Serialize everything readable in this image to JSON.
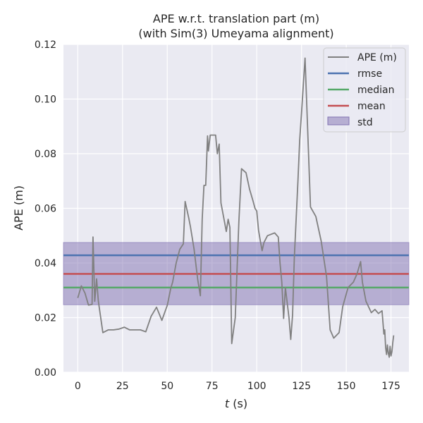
{
  "chart_data": {
    "type": "line",
    "title_line1": "APE w.r.t. translation part (m)",
    "title_line2": "(with Sim(3) Umeyama alignment)",
    "xlabel_var": "t",
    "xlabel_unit": " (s)",
    "ylabel": "APE (m)",
    "xlim": [
      -8,
      185
    ],
    "ylim": [
      0,
      0.12
    ],
    "xticks": [
      0,
      25,
      50,
      75,
      100,
      125,
      150,
      175
    ],
    "yticks": [
      0.0,
      0.02,
      0.04,
      0.06,
      0.08,
      0.1,
      0.12
    ],
    "ytick_labels": [
      "0.00",
      "0.02",
      "0.04",
      "0.06",
      "0.08",
      "0.10",
      "0.12"
    ],
    "grid": true,
    "legend_position": "top-right",
    "colors": {
      "background": "#eaeaf2",
      "grid": "#ffffff",
      "ape": "#808080",
      "rmse": "#4c72b0",
      "median": "#55a868",
      "mean": "#c44e52",
      "std": "#8172b2"
    },
    "stats": {
      "rmse": 0.0428,
      "median": 0.031,
      "mean": 0.036,
      "std_band": [
        0.0247,
        0.0475
      ]
    },
    "legend": [
      "APE (m)",
      "rmse",
      "median",
      "mean",
      "std"
    ],
    "series": [
      {
        "name": "APE (m)",
        "x": [
          0,
          2,
          4,
          6,
          8,
          8.5,
          9.5,
          10.5,
          11.5,
          14,
          17,
          20,
          23,
          26,
          29,
          32,
          35,
          38,
          41,
          44,
          47,
          50,
          52,
          53,
          55,
          57,
          59,
          60,
          62,
          63,
          65,
          67,
          68.5,
          69.5,
          70.5,
          71.5,
          72.5,
          73,
          74,
          75.5,
          77,
          78,
          79,
          80,
          82,
          83,
          84,
          85,
          86,
          88,
          90,
          91.5,
          94,
          96,
          98,
          99,
          100,
          101,
          102,
          103,
          104,
          106,
          108,
          110,
          112,
          113,
          114,
          115,
          116,
          118,
          119,
          120,
          121,
          123,
          124,
          125,
          126,
          127,
          130,
          133,
          136,
          139,
          141,
          143,
          146,
          148,
          151,
          154,
          156,
          158,
          159,
          161,
          164,
          166,
          168,
          170,
          171,
          171.5,
          172,
          172.5,
          173,
          173.5,
          174,
          174.5,
          175,
          175.5,
          176,
          176.5
        ],
        "y": [
          0.0272,
          0.0316,
          0.029,
          0.0246,
          0.0248,
          0.0495,
          0.026,
          0.0342,
          0.026,
          0.0145,
          0.0155,
          0.0155,
          0.0158,
          0.0165,
          0.0155,
          0.0155,
          0.0155,
          0.0148,
          0.0205,
          0.0238,
          0.019,
          0.0245,
          0.0308,
          0.033,
          0.04,
          0.045,
          0.047,
          0.0625,
          0.0565,
          0.053,
          0.045,
          0.034,
          0.028,
          0.056,
          0.0684,
          0.0684,
          0.0865,
          0.081,
          0.0868,
          0.0868,
          0.0868,
          0.08,
          0.0835,
          0.062,
          0.055,
          0.0515,
          0.056,
          0.053,
          0.0105,
          0.02,
          0.055,
          0.0745,
          0.073,
          0.067,
          0.0625,
          0.06,
          0.059,
          0.052,
          0.048,
          0.0445,
          0.0475,
          0.05,
          0.0505,
          0.051,
          0.0495,
          0.04,
          0.033,
          0.0197,
          0.031,
          0.02,
          0.012,
          0.021,
          0.042,
          0.07,
          0.085,
          0.095,
          0.105,
          0.115,
          0.0605,
          0.057,
          0.048,
          0.035,
          0.0155,
          0.0125,
          0.0145,
          0.024,
          0.031,
          0.033,
          0.036,
          0.0405,
          0.033,
          0.026,
          0.0218,
          0.023,
          0.0215,
          0.0225,
          0.014,
          0.0155,
          0.009,
          0.0065,
          0.01,
          0.007,
          0.0055,
          0.0095,
          0.006,
          0.0075,
          0.011,
          0.0135
        ]
      }
    ]
  }
}
